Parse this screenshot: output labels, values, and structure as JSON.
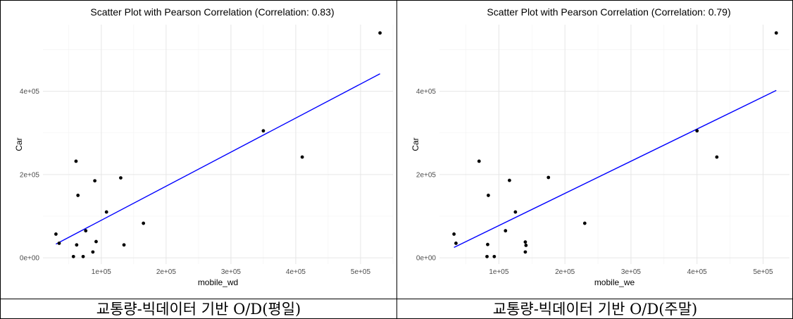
{
  "chart_data": [
    {
      "type": "scatter",
      "title": "Scatter Plot with Pearson Correlation (Correlation: 0.83)",
      "xlabel": "mobile_wd",
      "ylabel": "Car",
      "caption": "교통량-빅데이터 기반 O/D(평일)",
      "xlim": [
        10000,
        550000
      ],
      "ylim": [
        -15000,
        560000
      ],
      "x_ticks": [
        100000,
        200000,
        300000,
        400000,
        500000
      ],
      "x_tick_labels": [
        "1e+05",
        "2e+05",
        "3e+05",
        "4e+05",
        "5e+05"
      ],
      "y_ticks": [
        0,
        200000,
        400000
      ],
      "y_tick_labels": [
        "0e+00",
        "2e+05",
        "4e+05"
      ],
      "grid": true,
      "point_color": "#000000",
      "line_color": "#0000ff",
      "points": [
        {
          "x": 30000,
          "y": 57000
        },
        {
          "x": 35000,
          "y": 35000
        },
        {
          "x": 57000,
          "y": 3000
        },
        {
          "x": 61000,
          "y": 232000
        },
        {
          "x": 62000,
          "y": 31000
        },
        {
          "x": 64000,
          "y": 150000
        },
        {
          "x": 72000,
          "y": 3000
        },
        {
          "x": 76000,
          "y": 65000
        },
        {
          "x": 87000,
          "y": 14000
        },
        {
          "x": 90000,
          "y": 185000
        },
        {
          "x": 92000,
          "y": 39000
        },
        {
          "x": 108000,
          "y": 110000
        },
        {
          "x": 130000,
          "y": 192000
        },
        {
          "x": 135000,
          "y": 31000
        },
        {
          "x": 165000,
          "y": 83000
        },
        {
          "x": 350000,
          "y": 305000
        },
        {
          "x": 410000,
          "y": 242000
        },
        {
          "x": 530000,
          "y": 540000
        }
      ],
      "fit_line": {
        "x": [
          30000,
          530000
        ],
        "y": [
          33000,
          442000
        ]
      }
    },
    {
      "type": "scatter",
      "title": "Scatter Plot with Pearson Correlation (Correlation: 0.79)",
      "xlabel": "mobile_we",
      "ylabel": "Car",
      "caption": "교통량-빅데이터 기반 O/D(주말)",
      "xlim": [
        10000,
        540000
      ],
      "ylim": [
        -15000,
        560000
      ],
      "x_ticks": [
        100000,
        200000,
        300000,
        400000,
        500000
      ],
      "x_tick_labels": [
        "1e+05",
        "2e+05",
        "3e+05",
        "4e+05",
        "5e+05"
      ],
      "y_ticks": [
        0,
        200000,
        400000
      ],
      "y_tick_labels": [
        "0e+00",
        "2e+05",
        "4e+05"
      ],
      "grid": true,
      "point_color": "#000000",
      "line_color": "#0000ff",
      "points": [
        {
          "x": 32000,
          "y": 57000
        },
        {
          "x": 35000,
          "y": 35000
        },
        {
          "x": 70000,
          "y": 232000
        },
        {
          "x": 82000,
          "y": 3000
        },
        {
          "x": 83000,
          "y": 32000
        },
        {
          "x": 84000,
          "y": 150000
        },
        {
          "x": 93000,
          "y": 3000
        },
        {
          "x": 110000,
          "y": 65000
        },
        {
          "x": 116000,
          "y": 186000
        },
        {
          "x": 125000,
          "y": 110000
        },
        {
          "x": 140000,
          "y": 38000
        },
        {
          "x": 141000,
          "y": 30000
        },
        {
          "x": 140000,
          "y": 14000
        },
        {
          "x": 175000,
          "y": 193000
        },
        {
          "x": 230000,
          "y": 83000
        },
        {
          "x": 400000,
          "y": 305000
        },
        {
          "x": 430000,
          "y": 242000
        },
        {
          "x": 520000,
          "y": 540000
        }
      ],
      "fit_line": {
        "x": [
          32000,
          520000
        ],
        "y": [
          25000,
          402000
        ]
      }
    }
  ]
}
